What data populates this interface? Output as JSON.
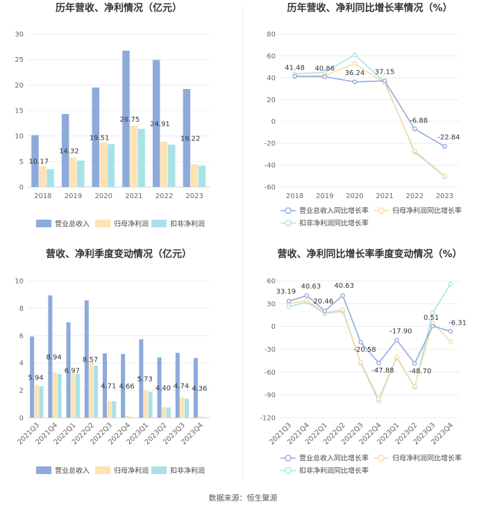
{
  "colors": {
    "revenue": "#8eaadb",
    "net_profit": "#fde3b4",
    "deducted_profit": "#a9e2e6",
    "revenue_line": "#8eaadb",
    "net_profit_line": "#fbd9a0",
    "deducted_profit_line": "#a9e2e6",
    "grid": "#e8ecf2",
    "axis": "#c8ccd4"
  },
  "footer": {
    "source": "数据来源：恒生聚源"
  },
  "chart_data": [
    {
      "id": "annual-bar",
      "type": "bar",
      "title": "历年营收、净利情况（亿元）",
      "categories": [
        "2018",
        "2019",
        "2020",
        "2021",
        "2022",
        "2023"
      ],
      "ylim": [
        0,
        30
      ],
      "yticks": [
        0,
        5,
        10,
        15,
        20,
        25,
        30
      ],
      "series": [
        {
          "name": "营业总收入",
          "values": [
            10.17,
            14.32,
            19.51,
            26.75,
            24.91,
            19.22
          ],
          "labels": [
            "10.17",
            "14.32",
            "19.51",
            "26.75",
            "24.91",
            "19.22"
          ],
          "color_key": "revenue"
        },
        {
          "name": "归母净利润",
          "values": [
            4.1,
            5.8,
            8.8,
            12.0,
            8.9,
            4.4
          ],
          "labels": [],
          "color_key": "net_profit"
        },
        {
          "name": "扣非净利润",
          "values": [
            3.5,
            5.2,
            8.4,
            11.4,
            8.3,
            4.2
          ],
          "labels": [],
          "color_key": "deducted_profit"
        }
      ]
    },
    {
      "id": "annual-line",
      "type": "line",
      "title": "历年营收、净利同比增长率情况（%）",
      "categories": [
        "2018",
        "2019",
        "2020",
        "2021",
        "2022",
        "2023"
      ],
      "ylim": [
        -60,
        80
      ],
      "yticks": [
        -60,
        -40,
        -20,
        0,
        20,
        40,
        60,
        80
      ],
      "series": [
        {
          "name": "营业总收入同比增长率",
          "values": [
            41.48,
            40.86,
            36.24,
            37.15,
            -6.88,
            -22.84
          ],
          "labels": [
            "41.48",
            "40.86",
            "36.24",
            "37.15",
            "-6.88",
            "-22.84"
          ],
          "color_key": "revenue_line"
        },
        {
          "name": "归母净利润同比增长率",
          "values": [
            41.0,
            42.0,
            53.0,
            35.0,
            -27.0,
            -50.0
          ],
          "labels": [],
          "color_key": "net_profit_line"
        },
        {
          "name": "扣非净利润同比增长率",
          "values": [
            43.5,
            45.0,
            61.0,
            36.0,
            -28.0,
            -50.5
          ],
          "labels": [],
          "color_key": "deducted_profit_line"
        }
      ]
    },
    {
      "id": "quarter-bar",
      "type": "bar",
      "title": "营收、净利季度变动情况（亿元）",
      "categories": [
        "2021Q3",
        "2021Q4",
        "2022Q1",
        "2022Q2",
        "2022Q3",
        "2022Q4",
        "2023Q1",
        "2023Q2",
        "2023Q3",
        "2023Q4"
      ],
      "ylim": [
        0,
        10
      ],
      "yticks": [
        0,
        2,
        4,
        6,
        8,
        10
      ],
      "series": [
        {
          "name": "营业总收入",
          "values": [
            5.94,
            8.94,
            6.97,
            8.57,
            4.71,
            4.66,
            5.73,
            4.4,
            4.74,
            4.36
          ],
          "labels": [
            "5.94",
            "8.94",
            "6.97",
            "8.57",
            "4.71",
            "4.66",
            "5.73",
            "4.40",
            "4.74",
            "4.36"
          ],
          "color_key": "revenue"
        },
        {
          "name": "归母净利润",
          "values": [
            2.4,
            3.3,
            3.2,
            4.1,
            1.2,
            0.15,
            2.0,
            0.8,
            1.5,
            0.12
          ],
          "labels": [],
          "color_key": "net_profit"
        },
        {
          "name": "扣非净利润",
          "values": [
            2.3,
            3.2,
            3.2,
            3.8,
            1.2,
            0.05,
            1.9,
            0.75,
            1.4,
            0.05
          ],
          "labels": [],
          "color_key": "deducted_profit"
        }
      ]
    },
    {
      "id": "quarter-line",
      "type": "line",
      "title": "营收、净利同比增长率季度变动情况（%）",
      "categories": [
        "2021Q3",
        "2021Q4",
        "2022Q1",
        "2022Q2",
        "2022Q3",
        "2022Q4",
        "2023Q1",
        "2023Q2",
        "2023Q3",
        "2023Q4"
      ],
      "ylim": [
        -120,
        60
      ],
      "yticks": [
        -120,
        -90,
        -60,
        -30,
        0,
        30,
        60
      ],
      "series": [
        {
          "name": "营业总收入同比增长率",
          "values": [
            33.19,
            40.63,
            20.46,
            40.63,
            -20.58,
            -47.88,
            -17.9,
            -48.7,
            0.51,
            -6.31
          ],
          "labels": [
            "33.19",
            "40.63",
            "20.46",
            "40.63",
            "-20.58",
            "-47.88",
            "-17.90",
            "-48.70",
            "0.51",
            "-6.31"
          ],
          "color_key": "revenue_line"
        },
        {
          "name": "归母净利润同比增长率",
          "values": [
            30.0,
            34.0,
            18.0,
            22.0,
            -47.0,
            -95.0,
            -40.0,
            -79.0,
            5.0,
            -20.0
          ],
          "labels": [],
          "color_key": "net_profit_line"
        },
        {
          "name": "扣非净利润同比增长率",
          "values": [
            26.0,
            32.0,
            17.0,
            20.0,
            -48.0,
            -98.0,
            -41.0,
            -80.0,
            18.0,
            56.0
          ],
          "labels": [],
          "color_key": "deducted_profit_line"
        }
      ]
    }
  ]
}
